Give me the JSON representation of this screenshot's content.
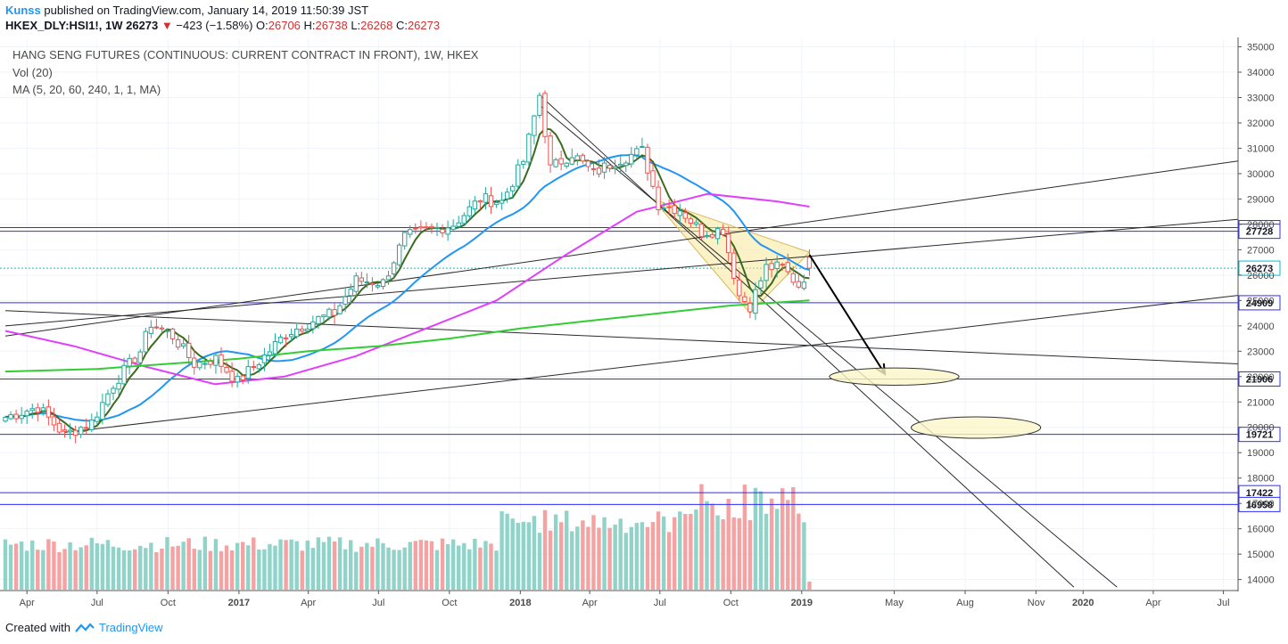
{
  "header": {
    "author": "Kunss",
    "published_text": "published on TradingView.com, January 14, 2019 11:50:39 JST",
    "symbol": "HKEX_DLY:HSI1!, 1W",
    "last": "26273",
    "change": "−423 (−1.58%)",
    "o_label": "O:",
    "o": "26706",
    "h_label": "H:",
    "h": "26738",
    "l_label": "L:",
    "l": "26268",
    "c_label": "C:",
    "c": "26273"
  },
  "legend": {
    "title": "HANG SENG FUTURES (CONTINUOUS: CURRENT CONTRACT IN FRONT), 1W, HKEX",
    "volume": "Vol (20)",
    "ma": "MA (5, 20, 60, 240, 1, 1, MA)"
  },
  "footer": {
    "created_with": "Created with",
    "brand": "TradingView"
  },
  "colors": {
    "up": "#8fd3c9",
    "down": "#f4a2a2",
    "up_candle": "#26a69a",
    "down_candle": "#ef5350",
    "ma5": "#3b6b1c",
    "ma20": "#2196f3",
    "ma60": "#e040fb",
    "ma240": "#33cc33",
    "hline": "#2c2cff",
    "last": "#00bcd4",
    "trend": "#2b2b2b",
    "wedge": "#f8e79a"
  },
  "chart_data": {
    "type": "candlestick",
    "period": "1W",
    "price_range": [
      13600,
      35300
    ],
    "price_ticks": [
      14000,
      15000,
      16000,
      17000,
      18000,
      19000,
      20000,
      21000,
      22000,
      23000,
      24000,
      25000,
      26000,
      27000,
      28000,
      29000,
      30000,
      31000,
      32000,
      33000,
      34000,
      35000
    ],
    "x_ticks": [
      "Apr",
      "Jul",
      "Oct",
      "2017",
      "Apr",
      "Jul",
      "Oct",
      "2018",
      "Apr",
      "Jul",
      "Oct",
      "2019",
      "May",
      "Aug",
      "Nov",
      "2020",
      "Apr",
      "Jul"
    ],
    "x_tick_dates": [
      "2016-04-01",
      "2016-07-01",
      "2016-10-01",
      "2017-01-01",
      "2017-04-01",
      "2017-07-01",
      "2017-10-01",
      "2018-01-01",
      "2018-04-01",
      "2018-07-01",
      "2018-10-01",
      "2019-01-01",
      "2019-05-01",
      "2019-08-01",
      "2019-11-01",
      "2020-01-01",
      "2020-04-01",
      "2020-07-01"
    ],
    "horizontal_levels": [
      27872,
      27728,
      24909,
      21906,
      19721,
      17422,
      16958
    ],
    "last_price": 26273,
    "close_path": [
      [
        "2016-03-04",
        20400
      ],
      [
        "2016-04-15",
        20800
      ],
      [
        "2016-05-20",
        19700
      ],
      [
        "2016-06-24",
        20200
      ],
      [
        "2016-07-22",
        21700
      ],
      [
        "2016-08-26",
        23000
      ],
      [
        "2016-09-09",
        24100
      ],
      [
        "2016-10-07",
        23600
      ],
      [
        "2016-11-04",
        22500
      ],
      [
        "2016-12-02",
        22700
      ],
      [
        "2016-12-30",
        21800
      ],
      [
        "2017-02-03",
        22800
      ],
      [
        "2017-03-03",
        23700
      ],
      [
        "2017-04-07",
        24200
      ],
      [
        "2017-05-05",
        24500
      ],
      [
        "2017-06-02",
        25800
      ],
      [
        "2017-07-07",
        25700
      ],
      [
        "2017-08-04",
        27500
      ],
      [
        "2017-09-08",
        27800
      ],
      [
        "2017-10-06",
        28000
      ],
      [
        "2017-11-10",
        29000
      ],
      [
        "2017-12-08",
        28900
      ],
      [
        "2018-01-05",
        30500
      ],
      [
        "2018-01-26",
        33100
      ],
      [
        "2018-02-09",
        30200
      ],
      [
        "2018-03-09",
        30800
      ],
      [
        "2018-04-06",
        30000
      ],
      [
        "2018-05-04",
        30500
      ],
      [
        "2018-06-08",
        30900
      ],
      [
        "2018-06-29",
        28800
      ],
      [
        "2018-07-27",
        28600
      ],
      [
        "2018-08-24",
        27700
      ],
      [
        "2018-09-21",
        27800
      ],
      [
        "2018-10-12",
        25200
      ],
      [
        "2018-10-26",
        24800
      ],
      [
        "2018-11-16",
        26300
      ],
      [
        "2018-12-07",
        26300
      ],
      [
        "2018-12-28",
        25600
      ],
      [
        "2019-01-11",
        26273
      ]
    ],
    "ma": [
      {
        "name": "MA 5",
        "period": 5
      },
      {
        "name": "MA 20",
        "period": 20
      },
      {
        "name": "MA 60",
        "period": 60
      },
      {
        "name": "MA 240",
        "period": 240
      }
    ],
    "ma60_path": [
      [
        "2016-03-04",
        23800
      ],
      [
        "2016-06-01",
        23200
      ],
      [
        "2016-09-01",
        22400
      ],
      [
        "2016-12-01",
        21700
      ],
      [
        "2017-03-01",
        22000
      ],
      [
        "2017-06-01",
        22800
      ],
      [
        "2017-09-01",
        23900
      ],
      [
        "2017-12-01",
        25000
      ],
      [
        "2018-03-01",
        26800
      ],
      [
        "2018-06-01",
        28500
      ],
      [
        "2018-09-01",
        29200
      ],
      [
        "2018-12-01",
        28900
      ],
      [
        "2019-01-11",
        28700
      ]
    ],
    "ma240_path": [
      [
        "2016-03-04",
        22200
      ],
      [
        "2016-07-01",
        22300
      ],
      [
        "2016-10-01",
        22500
      ],
      [
        "2017-01-01",
        22700
      ],
      [
        "2017-04-01",
        23000
      ],
      [
        "2017-07-01",
        23200
      ],
      [
        "2017-10-01",
        23500
      ],
      [
        "2018-01-01",
        23900
      ],
      [
        "2018-04-01",
        24200
      ],
      [
        "2018-07-01",
        24500
      ],
      [
        "2018-10-01",
        24800
      ],
      [
        "2019-01-11",
        25000
      ]
    ],
    "annotations": {
      "arrow_from": [
        "2019-01-11",
        26800
      ],
      "arrow_to": [
        "2019-04-19",
        22100
      ],
      "target_ellipses": [
        {
          "center": [
            "2019-05-01",
            21999
          ],
          "half_width_weeks": 12,
          "half_height": 340
        },
        {
          "center": [
            "2019-08-15",
            19990
          ],
          "half_width_weeks": 12,
          "half_height": 420
        }
      ]
    }
  }
}
